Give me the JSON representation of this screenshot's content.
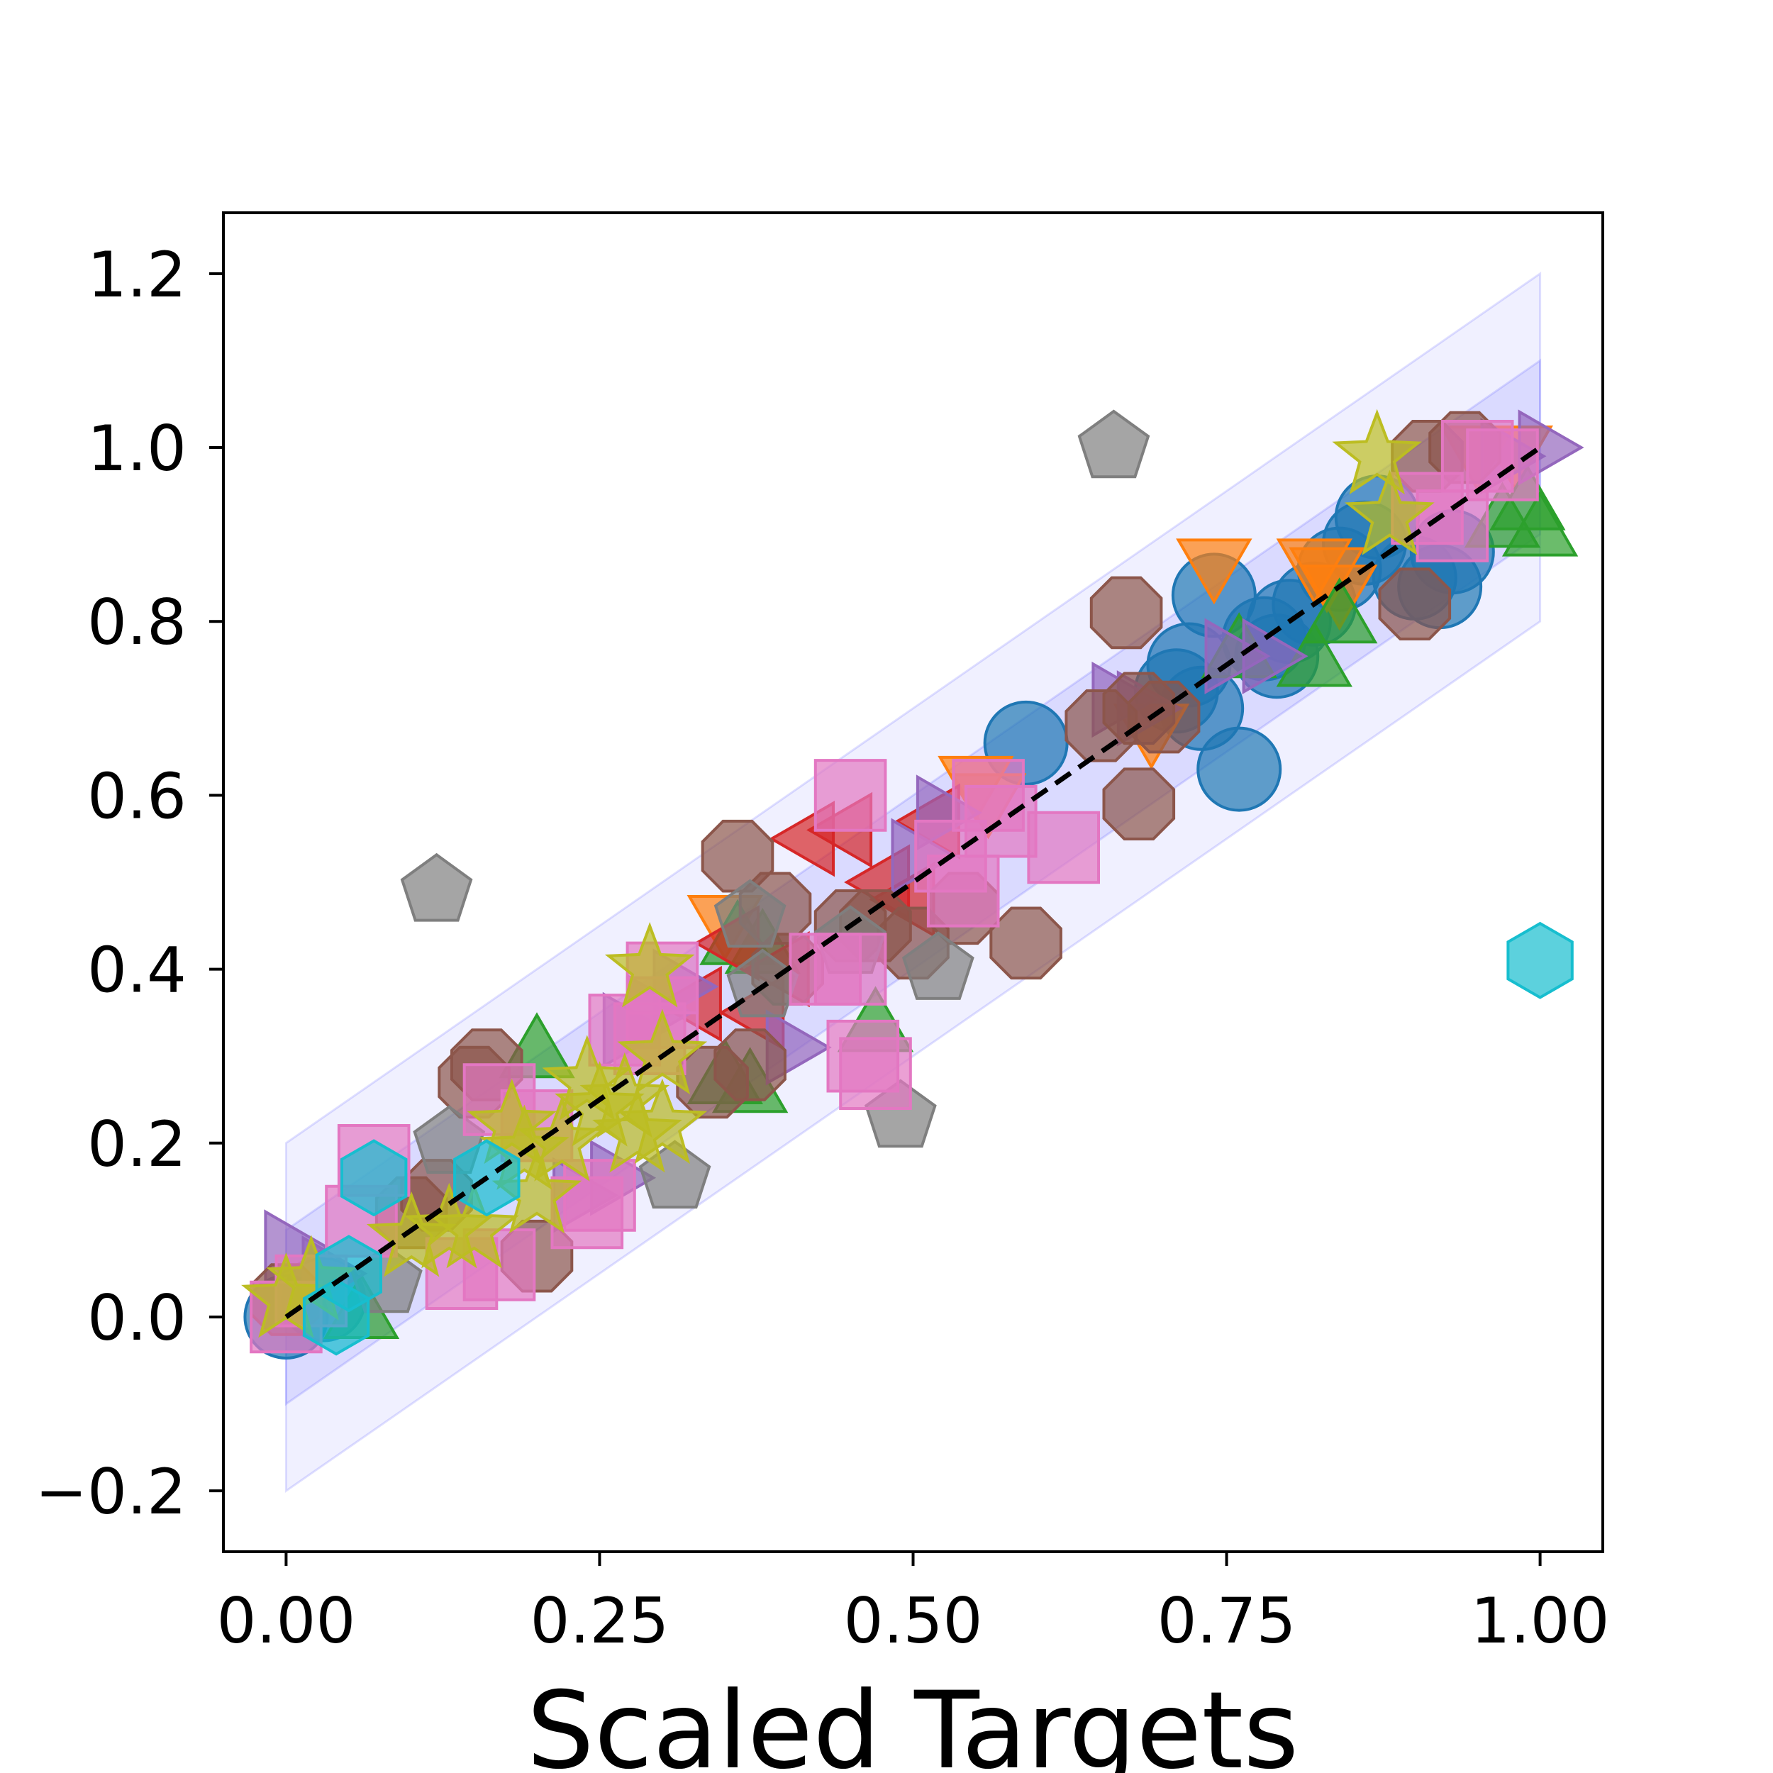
{
  "chart_data": {
    "type": "scatter",
    "title": "",
    "xlabel": "Scaled Targets",
    "ylabel": "",
    "xlim": [
      -0.05,
      1.05
    ],
    "ylim": [
      -0.27,
      1.27
    ],
    "xticks": [
      0.0,
      0.25,
      0.5,
      0.75,
      1.0
    ],
    "xtick_labels": [
      "0.00",
      "0.25",
      "0.50",
      "0.75",
      "1.00"
    ],
    "yticks": [
      -0.2,
      0.0,
      0.2,
      0.4,
      0.6,
      0.8,
      1.0,
      1.2
    ],
    "ytick_labels": [
      "−0.2",
      "0.0",
      "0.2",
      "0.4",
      "0.6",
      "0.8",
      "1.0",
      "1.2"
    ],
    "grid": false,
    "reference_line": {
      "x": [
        0,
        1
      ],
      "y": [
        0,
        1
      ],
      "color": "#000000",
      "style": "dashed"
    },
    "bands": [
      {
        "offset": 0.1,
        "color": "#0000ff",
        "opacity": 0.09
      },
      {
        "offset": 0.2,
        "color": "#0000ff",
        "opacity": 0.06
      }
    ],
    "series": [
      {
        "marker": "circle",
        "color": "#1f77b4",
        "points": [
          [
            0.0,
            0.0
          ],
          [
            0.03,
            0.02
          ],
          [
            0.59,
            0.66
          ],
          [
            0.72,
            0.75
          ],
          [
            0.74,
            0.83
          ],
          [
            0.73,
            0.7
          ],
          [
            0.76,
            0.63
          ],
          [
            0.78,
            0.78
          ],
          [
            0.8,
            0.8
          ],
          [
            0.82,
            0.82
          ],
          [
            0.84,
            0.86
          ],
          [
            0.86,
            0.89
          ],
          [
            0.87,
            0.92
          ],
          [
            0.9,
            0.85
          ],
          [
            0.92,
            0.84
          ],
          [
            0.93,
            0.88
          ],
          [
            0.79,
            0.76
          ],
          [
            0.71,
            0.72
          ]
        ]
      },
      {
        "marker": "triangle_down",
        "color": "#ff7f0e",
        "points": [
          [
            0.35,
            0.46
          ],
          [
            0.55,
            0.62
          ],
          [
            0.56,
            0.6
          ],
          [
            0.74,
            0.87
          ],
          [
            0.82,
            0.87
          ],
          [
            0.83,
            0.86
          ],
          [
            0.84,
            0.84
          ],
          [
            0.95,
            1.0
          ],
          [
            0.98,
            1.0
          ],
          [
            0.69,
            0.68
          ]
        ]
      },
      {
        "marker": "triangle_up",
        "color": "#2ca02c",
        "points": [
          [
            0.06,
            0.0
          ],
          [
            0.2,
            0.3
          ],
          [
            0.36,
            0.43
          ],
          [
            0.37,
            0.26
          ],
          [
            0.38,
            0.42
          ],
          [
            0.47,
            0.33
          ],
          [
            0.76,
            0.76
          ],
          [
            0.82,
            0.75
          ],
          [
            0.84,
            0.8
          ],
          [
            0.97,
            0.91
          ],
          [
            0.99,
            0.93
          ],
          [
            1.0,
            0.9
          ],
          [
            0.35,
            0.27
          ]
        ]
      },
      {
        "marker": "triangle_left",
        "color": "#d62728",
        "points": [
          [
            0.42,
            0.55
          ],
          [
            0.45,
            0.56
          ],
          [
            0.48,
            0.5
          ],
          [
            0.5,
            0.48
          ],
          [
            0.52,
            0.57
          ],
          [
            0.4,
            0.4
          ],
          [
            0.38,
            0.35
          ],
          [
            0.33,
            0.36
          ],
          [
            0.36,
            0.43
          ]
        ]
      },
      {
        "marker": "triangle_right",
        "color": "#9467bd",
        "points": [
          [
            0.0,
            0.08
          ],
          [
            0.03,
            0.05
          ],
          [
            0.27,
            0.33
          ],
          [
            0.29,
            0.35
          ],
          [
            0.31,
            0.38
          ],
          [
            0.26,
            0.16
          ],
          [
            0.23,
            0.14
          ],
          [
            0.5,
            0.53
          ],
          [
            0.52,
            0.58
          ],
          [
            0.66,
            0.71
          ],
          [
            0.68,
            0.7
          ],
          [
            0.75,
            0.76
          ],
          [
            0.78,
            0.76
          ],
          [
            0.97,
            0.99
          ],
          [
            1.0,
            1.0
          ],
          [
            0.4,
            0.31
          ]
        ]
      },
      {
        "marker": "octagon",
        "color": "#8c564b",
        "points": [
          [
            0.0,
            0.02
          ],
          [
            0.16,
            0.29
          ],
          [
            0.15,
            0.27
          ],
          [
            0.2,
            0.07
          ],
          [
            0.36,
            0.53
          ],
          [
            0.39,
            0.47
          ],
          [
            0.4,
            0.4
          ],
          [
            0.45,
            0.45
          ],
          [
            0.47,
            0.45
          ],
          [
            0.5,
            0.43
          ],
          [
            0.54,
            0.47
          ],
          [
            0.59,
            0.43
          ],
          [
            0.34,
            0.27
          ],
          [
            0.37,
            0.29
          ],
          [
            0.65,
            0.68
          ],
          [
            0.68,
            0.7
          ],
          [
            0.67,
            0.81
          ],
          [
            0.68,
            0.59
          ],
          [
            0.7,
            0.69
          ],
          [
            0.91,
            0.99
          ],
          [
            0.94,
            1.0
          ],
          [
            0.9,
            0.82
          ],
          [
            0.12,
            0.14
          ],
          [
            0.1,
            0.12
          ]
        ]
      },
      {
        "marker": "pentagon",
        "color": "#7f7f7f",
        "points": [
          [
            0.12,
            0.49
          ],
          [
            0.31,
            0.16
          ],
          [
            0.49,
            0.23
          ],
          [
            0.52,
            0.4
          ],
          [
            0.66,
            1.0
          ],
          [
            0.37,
            0.46
          ],
          [
            0.38,
            0.38
          ],
          [
            0.45,
            0.43
          ],
          [
            0.13,
            0.2
          ],
          [
            0.08,
            0.04
          ]
        ]
      },
      {
        "marker": "square",
        "color": "#e377c2",
        "points": [
          [
            0.0,
            0.0
          ],
          [
            0.02,
            0.03
          ],
          [
            0.06,
            0.11
          ],
          [
            0.07,
            0.18
          ],
          [
            0.14,
            0.05
          ],
          [
            0.17,
            0.06
          ],
          [
            0.17,
            0.25
          ],
          [
            0.2,
            0.22
          ],
          [
            0.24,
            0.12
          ],
          [
            0.25,
            0.14
          ],
          [
            0.27,
            0.33
          ],
          [
            0.29,
            0.32
          ],
          [
            0.3,
            0.39
          ],
          [
            0.3,
            0.35
          ],
          [
            0.45,
            0.6
          ],
          [
            0.43,
            0.4
          ],
          [
            0.45,
            0.4
          ],
          [
            0.46,
            0.3
          ],
          [
            0.47,
            0.28
          ],
          [
            0.53,
            0.53
          ],
          [
            0.54,
            0.49
          ],
          [
            0.56,
            0.6
          ],
          [
            0.57,
            0.57
          ],
          [
            0.62,
            0.54
          ],
          [
            0.91,
            0.93
          ],
          [
            0.93,
            0.91
          ],
          [
            0.95,
            0.99
          ],
          [
            0.97,
            0.98
          ]
        ]
      },
      {
        "marker": "star",
        "color": "#bcbd22",
        "points": [
          [
            0.0,
            0.02
          ],
          [
            0.02,
            0.04
          ],
          [
            0.1,
            0.09
          ],
          [
            0.13,
            0.1
          ],
          [
            0.15,
            0.1
          ],
          [
            0.18,
            0.22
          ],
          [
            0.19,
            0.19
          ],
          [
            0.2,
            0.14
          ],
          [
            0.22,
            0.2
          ],
          [
            0.24,
            0.27
          ],
          [
            0.25,
            0.24
          ],
          [
            0.27,
            0.25
          ],
          [
            0.28,
            0.21
          ],
          [
            0.29,
            0.4
          ],
          [
            0.3,
            0.3
          ],
          [
            0.3,
            0.22
          ],
          [
            0.87,
            0.99
          ],
          [
            0.88,
            0.92
          ]
        ]
      },
      {
        "marker": "hexagon",
        "color": "#17becf",
        "points": [
          [
            0.07,
            0.16
          ],
          [
            0.04,
            0.0
          ],
          [
            0.05,
            0.05
          ],
          [
            0.16,
            0.16
          ],
          [
            1.0,
            0.41
          ]
        ]
      }
    ]
  }
}
